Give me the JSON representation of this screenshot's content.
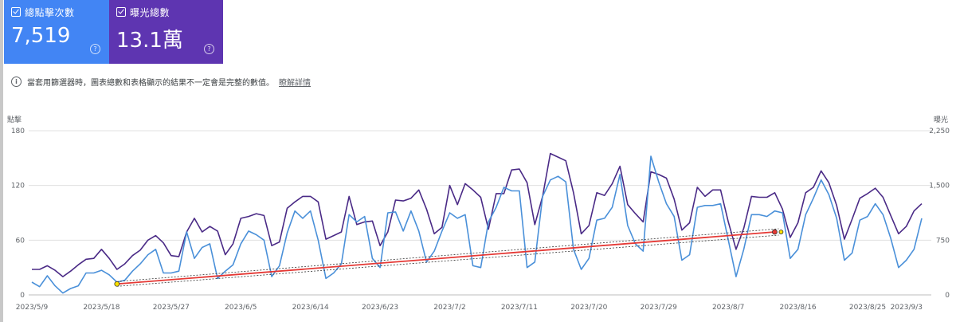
{
  "colors": {
    "clicks": "#4285f4",
    "impressions": "#5e35b1",
    "clicks_line": "#4a90d9",
    "impressions_line": "#4a2a86",
    "trend": "#e53935"
  },
  "cards": [
    {
      "label": "總點擊次數",
      "value": "7,519",
      "color": "#4285f4",
      "checked": true,
      "help_icon": "help-circle-icon"
    },
    {
      "label": "曝光總數",
      "value": "13.1萬",
      "color": "#5e35b1",
      "checked": true,
      "help_icon": "help-circle-icon"
    }
  ],
  "notice": {
    "text": "當套用篩選器時，圖表總數和表格顯示的結果不一定會是完整的數值。",
    "link": "瞭解詳情",
    "icon": "info-icon"
  },
  "chart_data": {
    "type": "line",
    "left_axis_label": "點擊",
    "right_axis_label": "曝光",
    "left_ticks": [
      "180",
      "120",
      "60",
      "0"
    ],
    "right_ticks": [
      "2,250",
      "1,500",
      "750",
      "0"
    ],
    "ylim_left": [
      0,
      180
    ],
    "ylim_right": [
      0,
      2250
    ],
    "x_tick_labels": [
      "2023/5/9",
      "2023/5/18",
      "2023/5/27",
      "2023/6/5",
      "2023/6/14",
      "2023/6/23",
      "2023/7/2",
      "2023/7/11",
      "2023/7/20",
      "2023/7/29",
      "2023/8/7",
      "2023/8/16",
      "2023/8/25",
      "2023/9/3"
    ],
    "x_start": "2023/5/9",
    "grid": true,
    "series": [
      {
        "name": "點擊",
        "axis": "left",
        "values": [
          14,
          9,
          21,
          10,
          2,
          7,
          10,
          24,
          24,
          27,
          22,
          14,
          16,
          26,
          34,
          44,
          50,
          24,
          24,
          26,
          69,
          40,
          52,
          56,
          18,
          26,
          33,
          56,
          70,
          66,
          60,
          20,
          32,
          68,
          92,
          84,
          92,
          60,
          18,
          24,
          34,
          88,
          80,
          86,
          40,
          30,
          90,
          91,
          70,
          92,
          70,
          36,
          48,
          70,
          90,
          84,
          88,
          32,
          30,
          80,
          96,
          118,
          114,
          114,
          30,
          36,
          108,
          126,
          130,
          124,
          50,
          28,
          40,
          82,
          84,
          96,
          132,
          76,
          56,
          48,
          152,
          124,
          100,
          86,
          38,
          44,
          96,
          98,
          98,
          100,
          60,
          20,
          50,
          88,
          88,
          86,
          92,
          90,
          40,
          50,
          88,
          106,
          126,
          110,
          84,
          38,
          46,
          82,
          86,
          100,
          88,
          62,
          30,
          38,
          50,
          84
        ]
      },
      {
        "name": "曝光",
        "axis": "right",
        "values": [
          350,
          350,
          400,
          338,
          250,
          325,
          413,
          488,
          500,
          625,
          500,
          350,
          425,
          538,
          613,
          750,
          813,
          713,
          538,
          525,
          863,
          1050,
          863,
          938,
          875,
          550,
          700,
          1050,
          1075,
          1113,
          1088,
          675,
          725,
          1188,
          1275,
          1350,
          1350,
          1275,
          763,
          813,
          863,
          1350,
          963,
          1000,
          1013,
          675,
          863,
          1300,
          1288,
          1325,
          1438,
          1175,
          838,
          925,
          1500,
          1238,
          1525,
          1438,
          1338,
          900,
          1388,
          1388,
          1713,
          1725,
          1538,
          963,
          1350,
          1938,
          1888,
          1838,
          1400,
          838,
          950,
          1400,
          1363,
          1525,
          1763,
          1238,
          1113,
          1000,
          1688,
          1650,
          1600,
          1313,
          888,
          988,
          1475,
          1350,
          1438,
          1438,
          1000,
          625,
          913,
          1350,
          1338,
          1338,
          1400,
          1175,
          788,
          988,
          1400,
          1475,
          1700,
          1538,
          1225,
          763,
          1038,
          1325,
          1388,
          1463,
          1338,
          1088,
          838,
          938,
          1150,
          1250
        ]
      }
    ],
    "trendline": {
      "y_start": 12,
      "y_end": 69
    }
  }
}
